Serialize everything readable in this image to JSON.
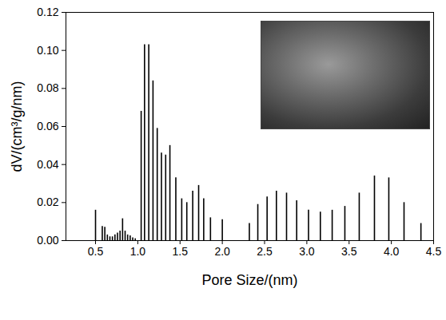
{
  "chart_data": {
    "type": "bar",
    "x_label": "Pore Size/(nm)",
    "y_label": "dV/(cm³/g/nm)",
    "x": [
      0.5,
      0.58,
      0.61,
      0.64,
      0.67,
      0.7,
      0.73,
      0.76,
      0.79,
      0.82,
      0.85,
      0.88,
      0.91,
      0.94,
      0.97,
      1.04,
      1.08,
      1.13,
      1.18,
      1.23,
      1.28,
      1.33,
      1.38,
      1.45,
      1.52,
      1.58,
      1.65,
      1.72,
      1.78,
      1.86,
      2.0,
      2.32,
      2.42,
      2.53,
      2.64,
      2.76,
      2.88,
      3.02,
      3.16,
      3.3,
      3.45,
      3.62,
      3.8,
      3.97,
      4.15,
      4.35
    ],
    "values": [
      0.016,
      0.0075,
      0.007,
      0.003,
      0.002,
      0.002,
      0.003,
      0.004,
      0.005,
      0.0115,
      0.005,
      0.003,
      0.0025,
      0.0015,
      0.001,
      0.068,
      0.103,
      0.103,
      0.084,
      0.059,
      0.046,
      0.045,
      0.05,
      0.033,
      0.022,
      0.02,
      0.026,
      0.029,
      0.022,
      0.012,
      0.011,
      0.009,
      0.019,
      0.023,
      0.026,
      0.025,
      0.021,
      0.016,
      0.015,
      0.016,
      0.018,
      0.025,
      0.034,
      0.033,
      0.02,
      0.009
    ],
    "color": "#000000",
    "xlim": [
      0.15,
      4.5
    ],
    "xticks": [
      {
        "value": 0.5,
        "label": "0.5"
      },
      {
        "value": 1,
        "label": "1.0"
      },
      {
        "value": 1.5,
        "label": "1.5"
      },
      {
        "value": 2,
        "label": "2.0"
      },
      {
        "value": 2.5,
        "label": "2.5"
      },
      {
        "value": 3,
        "label": "3.0"
      },
      {
        "value": 3.5,
        "label": "3.5"
      },
      {
        "value": 4,
        "label": "4.0"
      },
      {
        "value": 4.5,
        "label": "4.5"
      }
    ],
    "ylim": [
      0,
      0.12
    ],
    "yticks": [
      {
        "value": 0,
        "label": "0.00"
      },
      {
        "value": 0.02,
        "label": "0.02"
      },
      {
        "value": 0.04,
        "label": "0.04"
      },
      {
        "value": 0.06,
        "label": "0.06"
      },
      {
        "value": 0.08,
        "label": "0.08"
      },
      {
        "value": 0.1,
        "label": "0.10"
      },
      {
        "value": 0.12,
        "label": "0.12"
      }
    ],
    "grid": false
  }
}
